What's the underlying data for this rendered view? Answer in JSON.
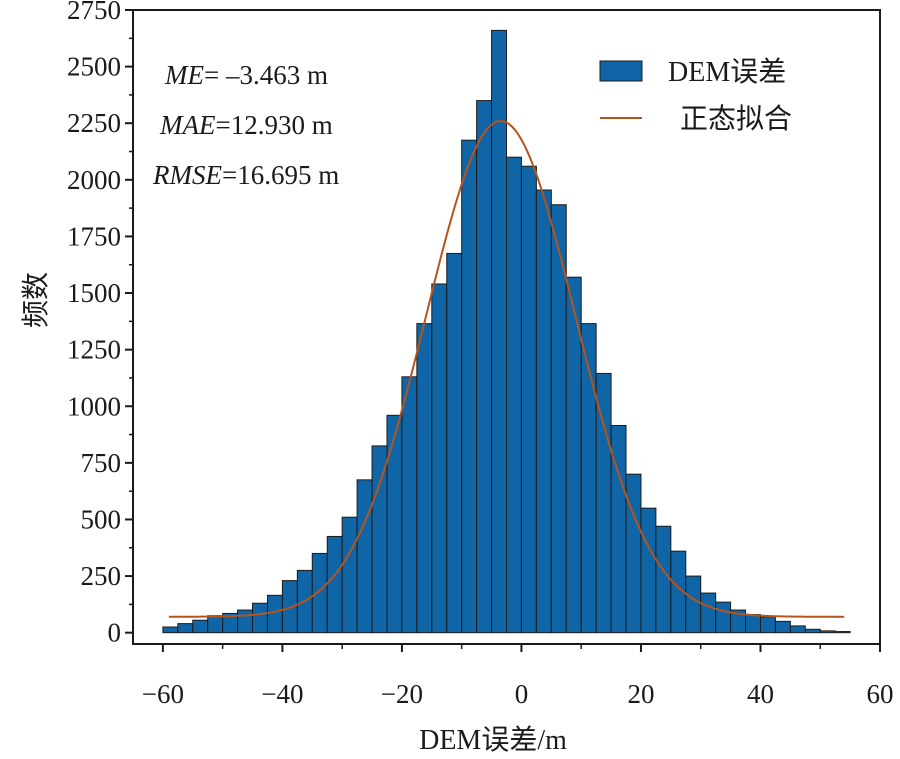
{
  "chart_data": {
    "type": "bar",
    "title": "",
    "xlabel": "DEM误差/m",
    "ylabel": "频数",
    "xlim": [
      -65,
      60
    ],
    "ylim": [
      -50,
      2750
    ],
    "xticks": [
      -60,
      -40,
      -20,
      0,
      20,
      40,
      60
    ],
    "xtick_labels": [
      "−60",
      "−40",
      "−20",
      "0",
      "20",
      "40",
      "60"
    ],
    "yticks": [
      0,
      250,
      500,
      750,
      1000,
      1250,
      1500,
      1750,
      2000,
      2250,
      2500,
      2750
    ],
    "yticks_labels": [
      "0",
      "250",
      "500",
      "750",
      "1000",
      "1250",
      "1500",
      "1750",
      "2000",
      "2250",
      "2500",
      "2750"
    ],
    "grid": false,
    "legend_position": "top-right",
    "bin_width": 2.5,
    "bins_start": [
      -60,
      -57.5,
      -55,
      -52.5,
      -50,
      -47.5,
      -45,
      -42.5,
      -40,
      -37.5,
      -35,
      -32.5,
      -30,
      -27.5,
      -25,
      -22.5,
      -20,
      -17.5,
      -15,
      -12.5,
      -10,
      -7.5,
      -5,
      -2.5,
      0,
      2.5,
      5,
      7.5,
      10,
      12.5,
      15,
      17.5,
      20,
      22.5,
      25,
      27.5,
      30,
      32.5,
      35,
      37.5,
      40,
      42.5,
      45,
      47.5,
      50,
      52.5
    ],
    "series": [
      {
        "name": "DEM误差",
        "kind": "histogram",
        "color": "#0f65a6",
        "edge_color": "#1c1c1c",
        "values": [
          25,
          40,
          55,
          75,
          85,
          100,
          130,
          165,
          230,
          275,
          350,
          425,
          510,
          675,
          825,
          960,
          1130,
          1365,
          1540,
          1675,
          2175,
          2350,
          2660,
          2100,
          2060,
          1955,
          1890,
          1570,
          1365,
          1145,
          915,
          700,
          550,
          470,
          360,
          250,
          175,
          135,
          100,
          80,
          70,
          50,
          30,
          15,
          8,
          5
        ]
      },
      {
        "name": "正态拟合",
        "kind": "line",
        "color": "#b5541c",
        "mean": -3.463,
        "sd": 12.5,
        "peak": 2260,
        "baseline": 70,
        "x_range": [
          -59,
          54
        ]
      }
    ],
    "annotations": [
      {
        "italic": "ME",
        "rest": "= –3.463 m"
      },
      {
        "italic": "MAE",
        "rest": "=12.930 m"
      },
      {
        "italic": "RMSE",
        "rest": "=16.695 m"
      }
    ]
  }
}
